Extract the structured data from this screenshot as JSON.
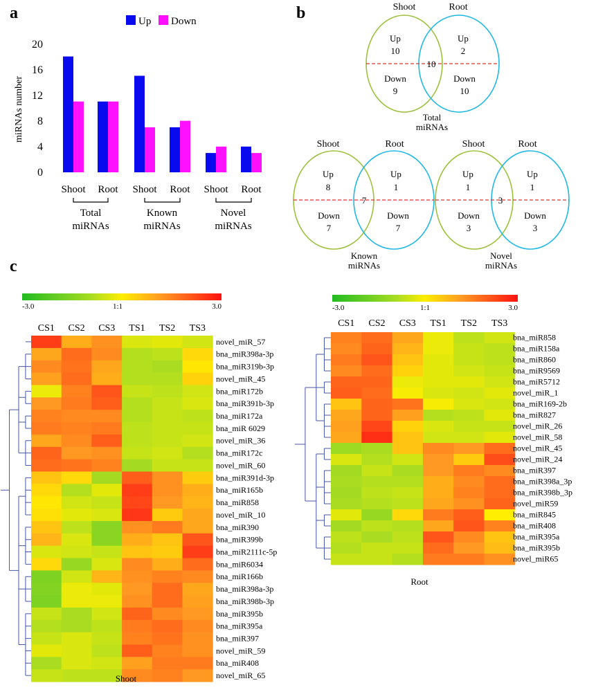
{
  "colors": {
    "up": "#0a0aee",
    "down": "#ff10ff",
    "shoot_circle": "#9cc23c",
    "root_circle": "#21b8e6",
    "divider": "#dd3333",
    "dendrogram": "#4455aa"
  },
  "panel_a": {
    "letter": "a",
    "chart_data": {
      "type": "bar",
      "ylabel": "miRNAs number",
      "ylim": [
        0,
        20
      ],
      "yticks": [
        "0",
        "4",
        "8",
        "12",
        "16",
        "20"
      ],
      "legend": {
        "placement": "top",
        "up_label": "Up",
        "down_label": "Down"
      },
      "categories": [
        "Shoot",
        "Root",
        "Shoot",
        "Root",
        "Shoot",
        "Root"
      ],
      "groups": [
        {
          "line1": "Total",
          "line2": "miRNAs"
        },
        {
          "line1": "Known",
          "line2": "miRNAs"
        },
        {
          "line1": "Novel",
          "line2": "miRNAs"
        }
      ],
      "series": [
        {
          "name": "Up",
          "values": [
            18,
            11,
            15,
            7,
            3,
            4
          ]
        },
        {
          "name": "Down",
          "values": [
            11,
            11,
            7,
            8,
            4,
            3
          ]
        }
      ]
    }
  },
  "panel_b": {
    "letter": "b",
    "venns": [
      {
        "shoot_label": "Shoot",
        "root_label": "Root",
        "shoot_up_label": "Up",
        "shoot_up": "10",
        "shoot_down_label": "Down",
        "shoot_down": "9",
        "overlap": "10",
        "root_up_label": "Up",
        "root_up": "2",
        "root_down_label": "Down",
        "root_down": "10",
        "caption1": "Total",
        "caption2": "miRNAs"
      },
      {
        "shoot_label": "Shoot",
        "root_label": "Root",
        "shoot_up_label": "Up",
        "shoot_up": "8",
        "shoot_down_label": "Down",
        "shoot_down": "7",
        "overlap": "7",
        "root_up_label": "Up",
        "root_up": "1",
        "root_down_label": "Down",
        "root_down": "7",
        "caption1": "Known",
        "caption2": "miRNAs"
      },
      {
        "shoot_label": "Shoot",
        "root_label": "Root",
        "shoot_up_label": "Up",
        "shoot_up": "1",
        "shoot_down_label": "Down",
        "shoot_down": "3",
        "overlap": "3",
        "root_up_label": "Up",
        "root_up": "1",
        "root_down_label": "Down",
        "root_down": "3",
        "caption1": "Novel",
        "caption2": "miRNAs"
      }
    ]
  },
  "panel_c": {
    "letter": "c",
    "heatmaps": [
      {
        "type": "heatmap",
        "caption": "Shoot",
        "scale_min": "-3.0",
        "scale_mid": "1:1",
        "scale_max": "3.0",
        "columns": [
          "CS1",
          "CS2",
          "CS3",
          "TS1",
          "TS2",
          "TS3"
        ],
        "rows": [
          "novel_miR_57",
          "bna_miR398a-3p",
          "bna_miR319b-3p",
          "novel_miR_45",
          "bna_miR172b",
          "bna_miR391b-3p",
          "bna_miR172a",
          "bna_miR 6029",
          "novel_miR_36",
          "bna_miR172c",
          "novel_miR_60",
          "bna_miR391d-3p",
          "bna_miR165b",
          "bna_miR858",
          "novel_miR_10",
          "bna_miR390",
          "bna_miR399b",
          "bna_miR2111c-5p",
          "bna_miR6034",
          "bna_miR166b",
          "bna_miR398a-3p",
          "bna_miR398b-3p",
          "bna_miR395b",
          "bna_miR395a",
          "bna_miR397",
          "novel_miR_59",
          "bna_miR408",
          "novel_miR_65"
        ],
        "values": [
          [
            2.4,
            0.9,
            1.3,
            -0.4,
            -0.3,
            -0.5
          ],
          [
            1.0,
            1.8,
            1.4,
            -0.8,
            -0.7,
            0.3
          ],
          [
            1.4,
            1.7,
            1.0,
            -0.8,
            -0.9,
            0.1
          ],
          [
            1.1,
            1.8,
            0.9,
            -0.8,
            -0.8,
            0.4
          ],
          [
            -0.2,
            1.5,
            2.1,
            -0.6,
            -0.7,
            -0.5
          ],
          [
            1.2,
            1.6,
            2.0,
            -0.8,
            -0.6,
            -0.4
          ],
          [
            1.5,
            1.4,
            1.4,
            -0.8,
            -0.6,
            -0.7
          ],
          [
            1.6,
            1.5,
            1.6,
            -0.7,
            -0.6,
            -0.6
          ],
          [
            1.0,
            1.4,
            2.0,
            -0.7,
            -0.6,
            -0.5
          ],
          [
            1.9,
            1.2,
            1.3,
            -0.6,
            -0.5,
            -0.8
          ],
          [
            1.8,
            1.7,
            1.5,
            -1.0,
            -0.6,
            -0.6
          ],
          [
            0.6,
            0.3,
            -1.0,
            2.0,
            1.3,
            0.5
          ],
          [
            0.3,
            -0.8,
            -0.3,
            2.4,
            1.3,
            0.9
          ],
          [
            0.1,
            -0.5,
            -0.6,
            2.3,
            1.2,
            0.8
          ],
          [
            0.2,
            -0.3,
            -0.4,
            2.5,
            0.5,
            1.0
          ],
          [
            0.6,
            -0.7,
            -1.4,
            1.3,
            1.6,
            1.0
          ],
          [
            0.8,
            -0.4,
            -1.4,
            0.9,
            0.6,
            2.1
          ],
          [
            -0.4,
            -0.5,
            -0.6,
            0.6,
            0.5,
            2.4
          ],
          [
            0.3,
            -1.2,
            -0.4,
            1.4,
            0.9,
            1.8
          ],
          [
            -1.6,
            -0.5,
            0.8,
            1.3,
            1.5,
            1.4
          ],
          [
            -1.5,
            -0.2,
            -0.3,
            1.2,
            1.8,
            1.0
          ],
          [
            -1.6,
            -0.2,
            -0.2,
            1.3,
            1.8,
            1.1
          ],
          [
            -0.6,
            -0.9,
            -0.5,
            1.9,
            1.4,
            1.2
          ],
          [
            -0.8,
            -0.9,
            -0.7,
            1.6,
            1.8,
            1.4
          ],
          [
            -0.6,
            -0.4,
            -0.6,
            1.5,
            1.7,
            1.3
          ],
          [
            -0.3,
            -0.4,
            -0.7,
            2.0,
            1.5,
            1.3
          ],
          [
            -0.9,
            -0.4,
            -0.5,
            1.1,
            1.6,
            1.6
          ],
          [
            -0.6,
            -0.7,
            -0.7,
            1.4,
            1.5,
            1.2
          ]
        ]
      },
      {
        "type": "heatmap",
        "caption": "Root",
        "scale_min": "-3.0",
        "scale_mid": "1:1",
        "scale_max": "3.0",
        "columns": [
          "CS1",
          "CS2",
          "CS3",
          "TS1",
          "TS2",
          "TS3"
        ],
        "rows": [
          "bna_miR858",
          "bna_miR158a",
          "bna_miR860",
          "bna_miR9569",
          "bna_miR5712",
          "novel_miR_1",
          "bna_miR169-2b",
          "bna_miR827",
          "novel_miR_26",
          "novel_miR_58",
          "novel_miR_45",
          "novel_miR_24",
          "bna_miR397",
          "bna_miR398a_3p",
          "bna_miR398b_3p",
          "novel_miR59",
          "bna_miR845",
          "bna_miR408",
          "bna_miR395a",
          "bna_miR395b",
          "novel_miR65"
        ],
        "values": [
          [
            1.5,
            1.8,
            1.0,
            -0.2,
            -0.7,
            -0.5
          ],
          [
            1.4,
            1.9,
            0.8,
            -0.2,
            -0.6,
            -0.7
          ],
          [
            1.6,
            2.1,
            0.6,
            -0.3,
            -0.6,
            -0.7
          ],
          [
            1.4,
            1.8,
            0.4,
            -0.3,
            -0.5,
            -0.6
          ],
          [
            1.9,
            1.9,
            -0.2,
            -0.3,
            -0.3,
            -0.5
          ],
          [
            2.0,
            1.8,
            -0.1,
            -0.4,
            -0.5,
            -0.3
          ],
          [
            0.6,
            1.9,
            1.7,
            -0.1,
            -0.4,
            -0.5
          ],
          [
            1.0,
            1.9,
            1.1,
            -0.8,
            -0.7,
            -0.3
          ],
          [
            1.1,
            2.3,
            0.4,
            -0.4,
            -0.6,
            -0.6
          ],
          [
            1.0,
            2.6,
            0.6,
            -0.5,
            -0.5,
            -0.3
          ],
          [
            -1.1,
            -0.9,
            0.6,
            1.4,
            1.2,
            1.8
          ],
          [
            -0.4,
            -0.8,
            -0.5,
            1.2,
            0.5,
            2.2
          ],
          [
            -1.0,
            -0.6,
            -0.9,
            1.2,
            1.6,
            1.4
          ],
          [
            -0.9,
            -0.8,
            -0.8,
            0.9,
            1.4,
            1.8
          ],
          [
            -1.0,
            -0.7,
            -0.6,
            0.9,
            1.5,
            1.8
          ],
          [
            -0.9,
            -0.8,
            -0.7,
            1.0,
            1.3,
            1.9
          ],
          [
            -0.3,
            -1.2,
            0.3,
            1.6,
            2.0,
            0.0
          ],
          [
            -1.0,
            -0.7,
            -0.8,
            1.0,
            2.1,
            1.5
          ],
          [
            -0.7,
            -0.9,
            -0.7,
            2.1,
            1.4,
            0.6
          ],
          [
            -0.8,
            -0.6,
            -0.6,
            1.8,
            1.2,
            0.7
          ],
          [
            -0.6,
            -0.6,
            -0.8,
            1.6,
            1.6,
            1.3
          ]
        ]
      }
    ]
  }
}
